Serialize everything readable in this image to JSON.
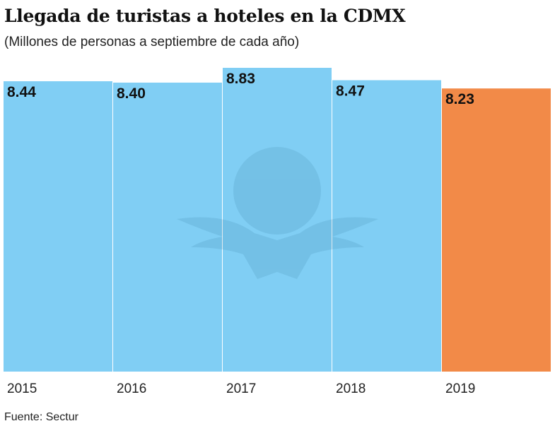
{
  "chart_data": {
    "type": "bar",
    "title": "Llegada de turistas a hoteles en la CDMX",
    "subtitle": "(Millones de personas a septiembre de cada año)",
    "categories": [
      "2015",
      "2016",
      "2017",
      "2018",
      "2019"
    ],
    "values": [
      8.44,
      8.4,
      8.83,
      8.47,
      8.23
    ],
    "value_labels": [
      "8.44",
      "8.40",
      "8.83",
      "8.47",
      "8.23"
    ],
    "ylim": [
      0,
      8.83
    ],
    "grid": false,
    "source": "Fuente: Sectur",
    "colors": {
      "default": "#80CEF4",
      "highlight": "#F28A48",
      "highlight_category": "2019"
    }
  }
}
